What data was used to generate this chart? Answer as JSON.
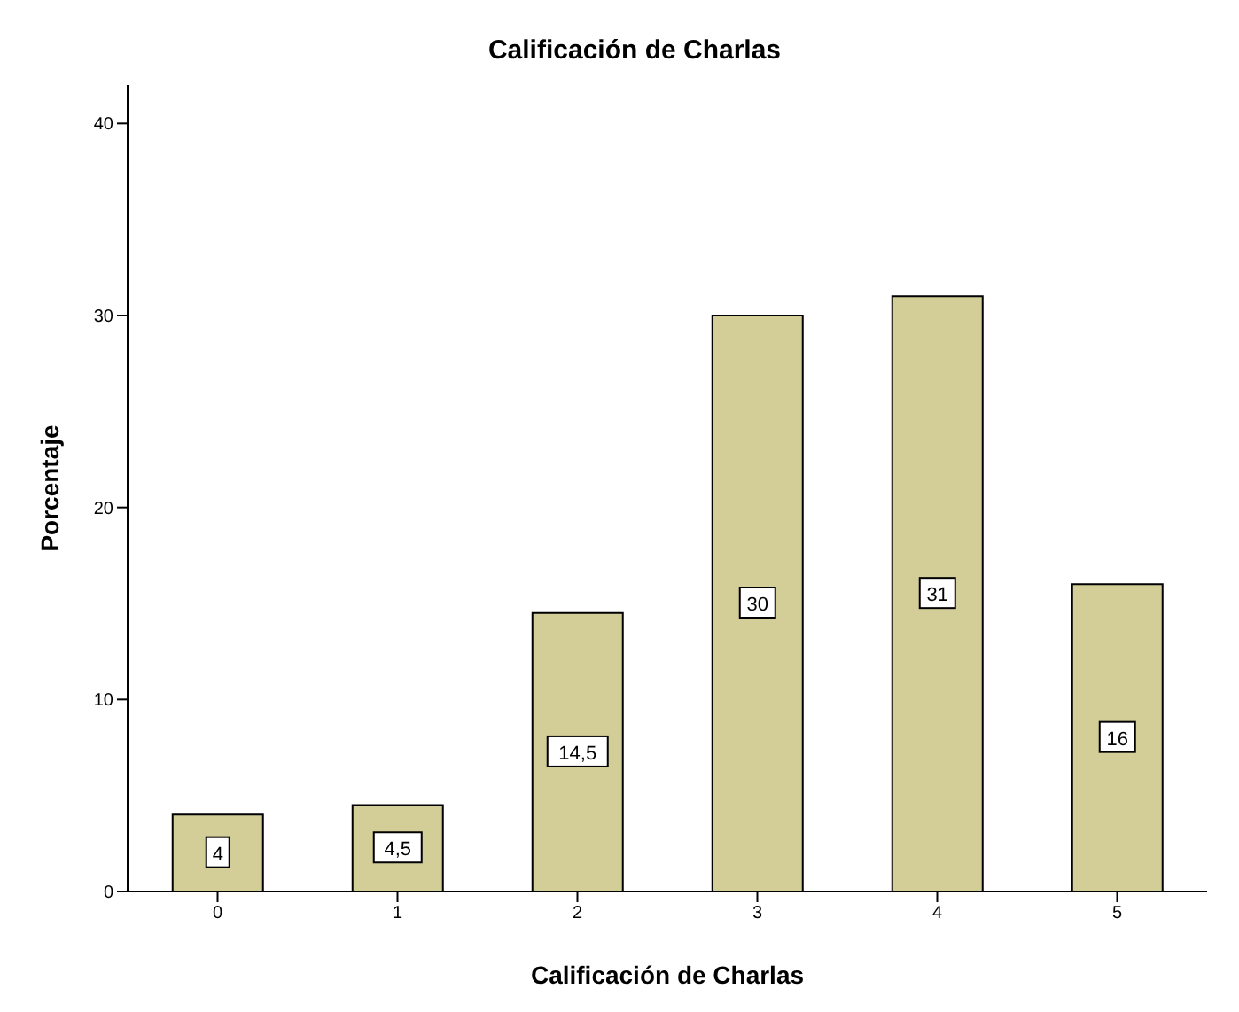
{
  "chart_data": {
    "type": "bar",
    "title": "Calificación de Charlas",
    "xlabel": "Calificación de Charlas",
    "ylabel": "Porcentaje",
    "categories": [
      "0",
      "1",
      "2",
      "3",
      "4",
      "5"
    ],
    "values": [
      4,
      4.5,
      14.5,
      30,
      31,
      16
    ],
    "value_labels": [
      "4",
      "4,5",
      "14,5",
      "30",
      "31",
      "16"
    ],
    "color": "#d3cd98",
    "ylim": [
      0,
      42
    ],
    "yticks": [
      0,
      10,
      20,
      30,
      40
    ],
    "grid": false,
    "legend": false
  }
}
